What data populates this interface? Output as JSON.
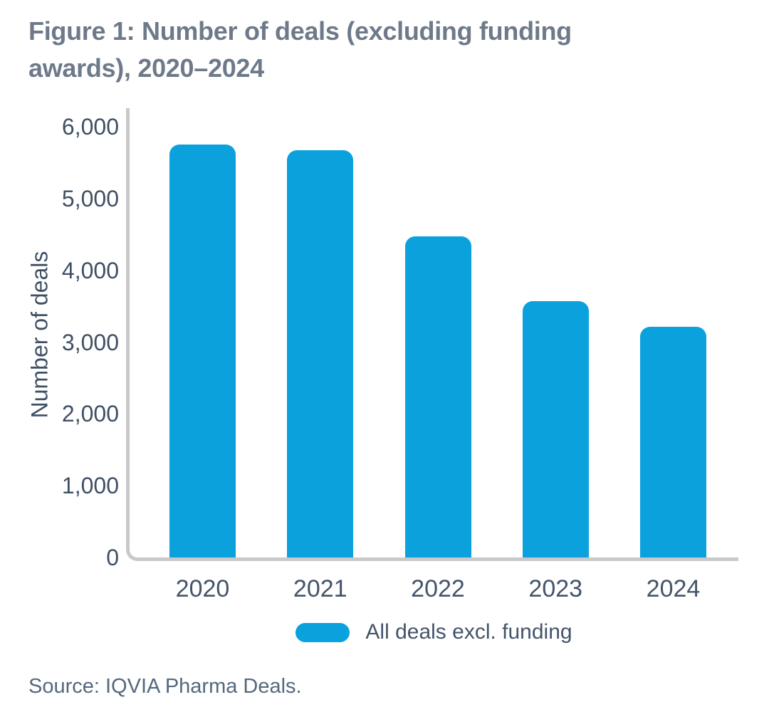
{
  "figure": {
    "title_lines": [
      "Figure 1: Number of deals (excluding funding",
      "awards), 2020–2024"
    ],
    "source": "Source: IQVIA Pharma Deals."
  },
  "chart_data": {
    "type": "bar",
    "categories": [
      "2020",
      "2021",
      "2022",
      "2023",
      "2024"
    ],
    "values": [
      5750,
      5670,
      4470,
      3570,
      3210
    ],
    "title": "Figure 1: Number of deals (excluding funding awards), 2020–2024",
    "xlabel": "",
    "ylabel": "Number of deals",
    "ylim": [
      0,
      6000
    ],
    "yticks": [
      0,
      1000,
      2000,
      3000,
      4000,
      5000,
      6000
    ],
    "ytick_labels": [
      "0",
      "1,000",
      "2,000",
      "3,000",
      "4,000",
      "5,000",
      "6,000"
    ],
    "grid": false,
    "legend_position": "bottom-center",
    "bar_color": "#0aa1dd",
    "legend": [
      {
        "label": "All deals excl. funding",
        "color": "#0aa1dd"
      }
    ]
  },
  "colors": {
    "background": "#ffffff",
    "title_text": "#6e7a89",
    "axis_line": "#c9c9cb",
    "tick_text": "#3f5064",
    "xlabel_text": "#44546a",
    "source_text": "#54687e",
    "bar": "#0aa1dd"
  }
}
